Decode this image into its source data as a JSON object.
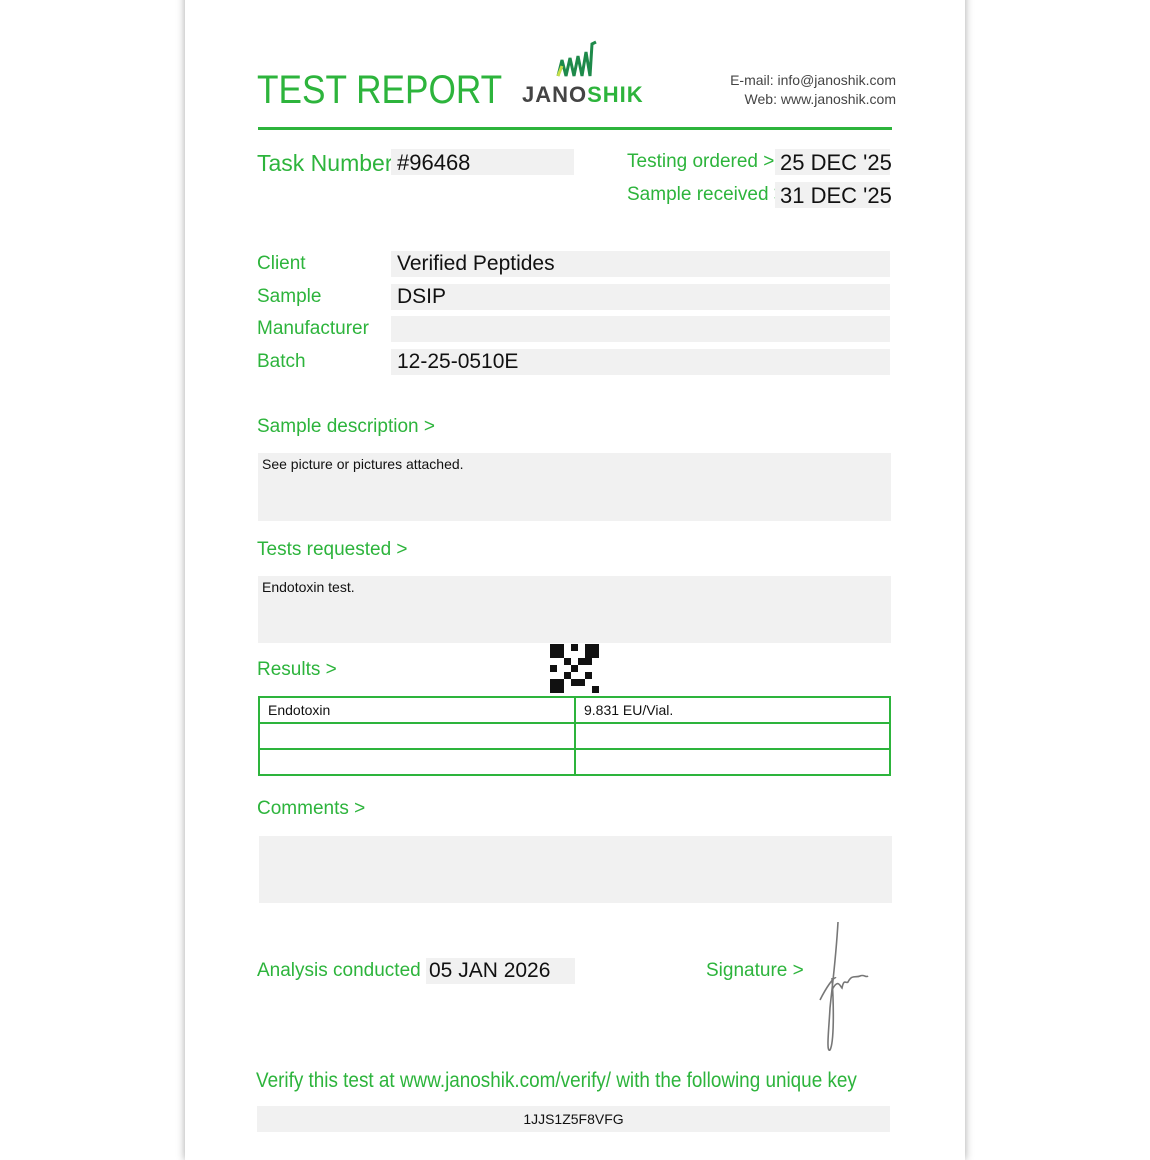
{
  "header": {
    "title": "TEST REPORT",
    "logo_text_a": "JANO",
    "logo_text_b": "SHIK",
    "email": "E-mail: info@janoshik.com",
    "web": "Web: www.janoshik.com"
  },
  "task": {
    "label": "Task Number",
    "value": "#96468"
  },
  "dates": {
    "ordered_label": "Testing ordered  >",
    "ordered_value": "25 DEC '25",
    "received_label": "Sample received >",
    "received_value": "31 DEC '25"
  },
  "info": [
    {
      "label": "Client",
      "value": "Verified Peptides"
    },
    {
      "label": "Sample",
      "value": "DSIP"
    },
    {
      "label": "Manufacturer",
      "value": ""
    },
    {
      "label": "Batch",
      "value": "12-25-0510E"
    }
  ],
  "description": {
    "label": "Sample description >",
    "value": "See picture or pictures attached."
  },
  "tests": {
    "label": "Tests requested >",
    "value": "Endotoxin test."
  },
  "results": {
    "label": "Results >",
    "rows": [
      [
        "Endotoxin",
        "9.831 EU/Vial."
      ],
      [
        "",
        ""
      ],
      [
        "",
        ""
      ]
    ]
  },
  "comments": {
    "label": "Comments >",
    "value": ""
  },
  "analysis": {
    "label": "Analysis conducted >",
    "value": "05 JAN 2026"
  },
  "signature": {
    "label": "Signature >"
  },
  "verify": {
    "text": "Verify this test at www.janoshik.com/verify/ with the following unique key",
    "key": "1JJS1Z5F8VFG"
  },
  "colors": {
    "accent": "#2db43c",
    "field": "#f1f1f1"
  }
}
